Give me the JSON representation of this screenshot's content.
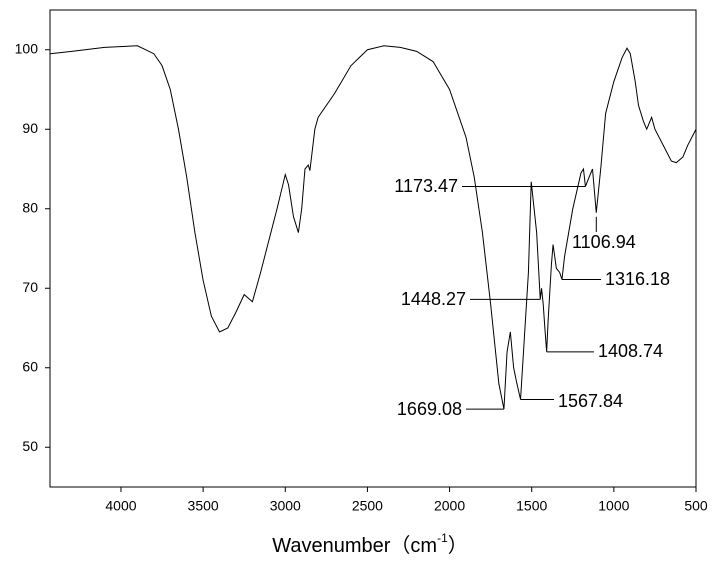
{
  "chart_data": {
    "type": "line",
    "xlabel": {
      "text": "Wavenumber（cm",
      "superscript": "-1",
      "suffix": "）"
    },
    "xlim": [
      4432,
      500
    ],
    "xticks": [
      4000,
      3500,
      3000,
      2500,
      2000,
      1500,
      1000,
      500
    ],
    "ylim": [
      45,
      105
    ],
    "yticks": [
      50,
      60,
      70,
      80,
      90,
      100
    ],
    "color": "#000000",
    "x": [
      4432,
      4300,
      4100,
      3900,
      3800,
      3750,
      3700,
      3650,
      3600,
      3550,
      3500,
      3450,
      3400,
      3350,
      3300,
      3250,
      3200,
      3150,
      3100,
      3050,
      3000,
      2980,
      2950,
      2920,
      2900,
      2880,
      2860,
      2850,
      2820,
      2800,
      2700,
      2600,
      2500,
      2400,
      2300,
      2200,
      2100,
      2000,
      1900,
      1850,
      1800,
      1750,
      1700,
      1669,
      1650,
      1630,
      1610,
      1590,
      1568,
      1550,
      1520,
      1503,
      1470,
      1448,
      1440,
      1430,
      1420,
      1409,
      1400,
      1380,
      1370,
      1350,
      1330,
      1316,
      1300,
      1250,
      1200,
      1185,
      1173,
      1150,
      1130,
      1107,
      1080,
      1050,
      1000,
      950,
      920,
      900,
      870,
      850,
      820,
      800,
      770,
      750,
      700,
      650,
      620,
      580,
      550,
      500
    ],
    "values": [
      99.5,
      99.8,
      100.3,
      100.5,
      99.5,
      98,
      95,
      90,
      84,
      77,
      71,
      66.5,
      64.5,
      65,
      67,
      69.2,
      68.3,
      72,
      76,
      80,
      84.3,
      83,
      79,
      77,
      80,
      85,
      85.5,
      84.8,
      90,
      91.5,
      94.5,
      98,
      100,
      100.5,
      100.3,
      99.8,
      98.5,
      95,
      89,
      84,
      77,
      68,
      58,
      54.8,
      62,
      64.5,
      60,
      58,
      56,
      62,
      72,
      83.4,
      77,
      68.6,
      70,
      68,
      65,
      62,
      66,
      73,
      75.5,
      72.5,
      72,
      71.1,
      74,
      80,
      84.5,
      85,
      82.8,
      84,
      85,
      79.5,
      85,
      92,
      96,
      99,
      100.2,
      99.5,
      96,
      93,
      91,
      90,
      91.5,
      90,
      88,
      86,
      85.8,
      86.5,
      88,
      90
    ],
    "annotations": [
      {
        "label": "1173.47",
        "x": 1173.47,
        "y": 82.8
      },
      {
        "label": "1106.94",
        "x": 1106.94,
        "y": 79.5
      },
      {
        "label": "1316.18",
        "x": 1316.18,
        "y": 71.1
      },
      {
        "label": "1448.27",
        "x": 1448.27,
        "y": 68.6
      },
      {
        "label": "1408.74",
        "x": 1408.74,
        "y": 62
      },
      {
        "label": "1567.84",
        "x": 1567.84,
        "y": 56
      },
      {
        "label": "1669.08",
        "x": 1669.08,
        "y": 54.8
      }
    ]
  }
}
